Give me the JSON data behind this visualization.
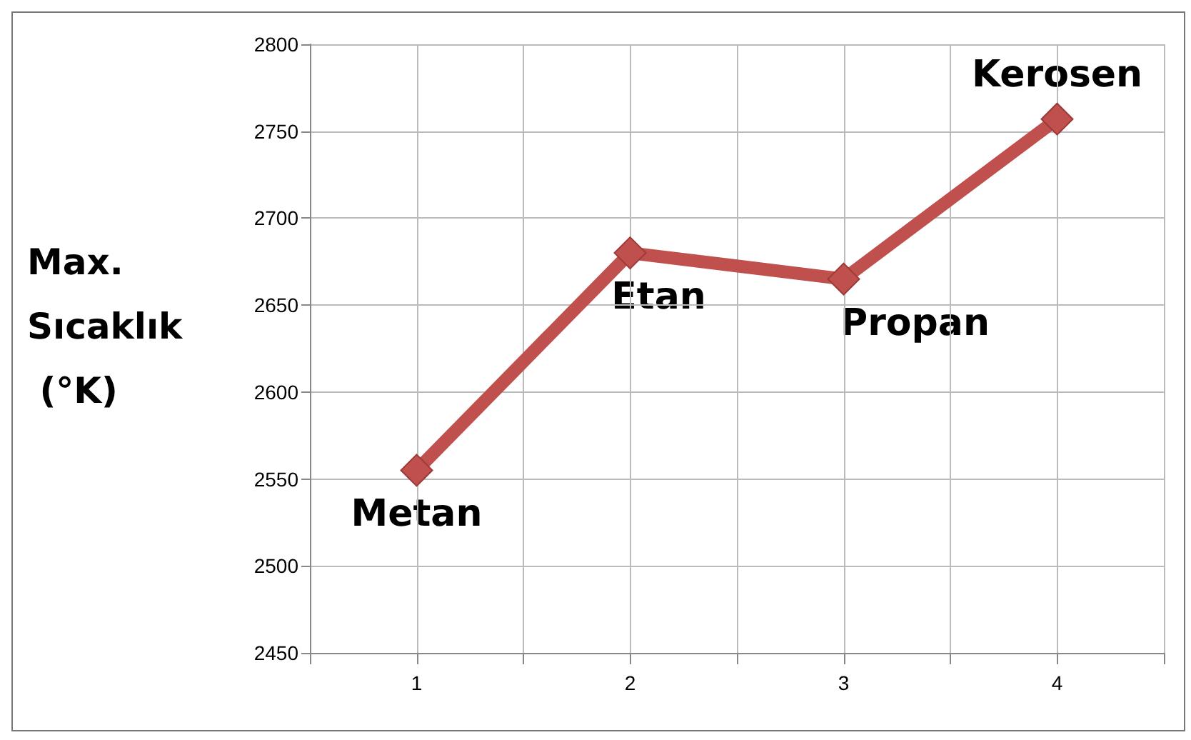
{
  "chart_data": {
    "type": "line",
    "ylabel": "Max. Sıcaklık (°K)",
    "x": [
      1,
      2,
      3,
      4
    ],
    "xlim": [
      0.5,
      4.5
    ],
    "xticks": [
      {
        "value": 0.5,
        "label": null
      },
      1,
      {
        "value": 1.5,
        "label": null
      },
      2,
      {
        "value": 2.5,
        "label": null
      },
      3,
      {
        "value": 3.5,
        "label": null
      },
      4,
      {
        "value": 4.5,
        "label": null
      }
    ],
    "series": [
      {
        "color": "#c0504d",
        "values": [
          2555,
          2680,
          2665,
          2757
        ]
      }
    ],
    "ylim": [
      2450,
      2800
    ],
    "yticks": [
      2450,
      2500,
      2550,
      2600,
      2650,
      2700,
      2750,
      2800
    ],
    "grid": true,
    "marker": "diamond",
    "line_style": "solid",
    "annotations": [
      {
        "text": "Metan",
        "x": 1,
        "y": 2555
      },
      {
        "text": "Etan",
        "x": 2,
        "y": 2680
      },
      {
        "text": "Propan",
        "x": 3,
        "y": 2665
      },
      {
        "text": "Kerosen",
        "x": 4,
        "y": 2757
      }
    ]
  }
}
